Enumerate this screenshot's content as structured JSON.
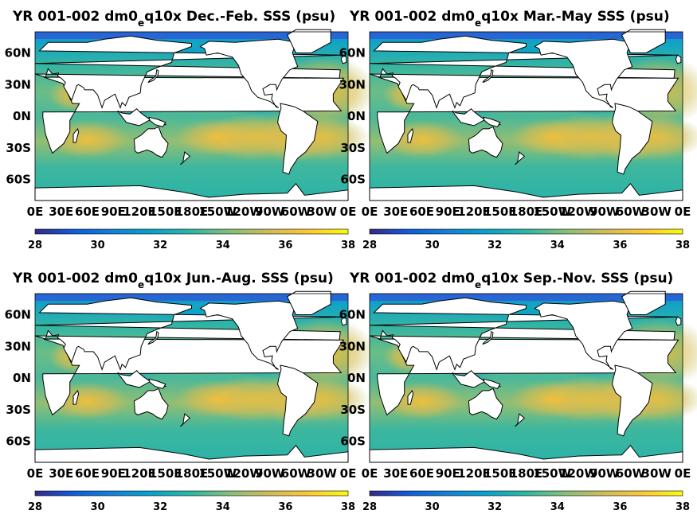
{
  "chart_data": [
    {
      "type": "heatmap",
      "title_main": "YR 001-002 dm0",
      "title_sub": "e",
      "title_rest": "q10x Dec.-Feb. SSS (psu)",
      "lat_ticks": [
        "60N",
        "30N",
        "0N",
        "30S",
        "60S"
      ],
      "lon_ticks": [
        "0E",
        "30E",
        "60E",
        "90E",
        "120E",
        "150E",
        "180E",
        "150W",
        "120W",
        "90W",
        "60W",
        "30W",
        "0E"
      ],
      "colorbar": {
        "min": 28,
        "max": 38,
        "ticks": [
          "28",
          "30",
          "32",
          "34",
          "36",
          "38"
        ],
        "colors": [
          "#352a87",
          "#0f5cdd",
          "#1481d6",
          "#06a4ca",
          "#2eb7a4",
          "#87bf77",
          "#d1bb59",
          "#fec832",
          "#f9fb0e"
        ]
      },
      "season": "Dec.-Feb."
    },
    {
      "type": "heatmap",
      "title_main": "YR 001-002 dm0",
      "title_sub": "e",
      "title_rest": "q10x Mar.-May SSS (psu)",
      "lat_ticks": [
        "60N",
        "30N",
        "0N",
        "30S",
        "60S"
      ],
      "lon_ticks": [
        "0E",
        "30E",
        "60E",
        "90E",
        "120E",
        "150E",
        "180E",
        "150W",
        "120W",
        "90W",
        "60W",
        "30W",
        "0E"
      ],
      "colorbar": {
        "min": 28,
        "max": 38,
        "ticks": [
          "28",
          "30",
          "32",
          "34",
          "36",
          "38"
        ],
        "colors": [
          "#352a87",
          "#0f5cdd",
          "#1481d6",
          "#06a4ca",
          "#2eb7a4",
          "#87bf77",
          "#d1bb59",
          "#fec832",
          "#f9fb0e"
        ]
      },
      "season": "Mar.-May"
    },
    {
      "type": "heatmap",
      "title_main": "YR 001-002 dm0",
      "title_sub": "e",
      "title_rest": "q10x Jun.-Aug. SSS (psu)",
      "lat_ticks": [
        "60N",
        "30N",
        "0N",
        "30S",
        "60S"
      ],
      "lon_ticks": [
        "0E",
        "30E",
        "60E",
        "90E",
        "120E",
        "150E",
        "180E",
        "150W",
        "120W",
        "90W",
        "60W",
        "30W",
        "0E"
      ],
      "colorbar": {
        "min": 28,
        "max": 38,
        "ticks": [
          "28",
          "30",
          "32",
          "34",
          "36",
          "38"
        ],
        "colors": [
          "#352a87",
          "#0f5cdd",
          "#1481d6",
          "#06a4ca",
          "#2eb7a4",
          "#87bf77",
          "#d1bb59",
          "#fec832",
          "#f9fb0e"
        ]
      },
      "season": "Jun.-Aug."
    },
    {
      "type": "heatmap",
      "title_main": "YR 001-002 dm0",
      "title_sub": "e",
      "title_rest": "q10x Sep.-Nov. SSS (psu)",
      "lat_ticks": [
        "60N",
        "30N",
        "0N",
        "30S",
        "60S"
      ],
      "lon_ticks": [
        "0E",
        "30E",
        "60E",
        "90E",
        "120E",
        "150E",
        "180E",
        "150W",
        "120W",
        "90W",
        "60W",
        "30W",
        "0E"
      ],
      "colorbar": {
        "min": 28,
        "max": 38,
        "ticks": [
          "28",
          "30",
          "32",
          "34",
          "36",
          "38"
        ],
        "colors": [
          "#352a87",
          "#0f5cdd",
          "#1481d6",
          "#06a4ca",
          "#2eb7a4",
          "#87bf77",
          "#d1bb59",
          "#fec832",
          "#f9fb0e"
        ]
      },
      "season": "Sep.-Nov."
    }
  ]
}
